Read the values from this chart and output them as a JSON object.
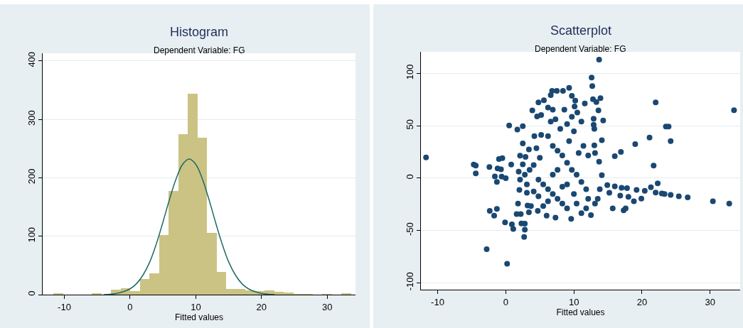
{
  "chart_data": [
    {
      "type": "histogram",
      "title": "Histogram",
      "subtitle": "Dependent Variable: FG",
      "xlabel": "Fitted values",
      "bins": [
        -11.64,
        -10.18,
        -8.72,
        -7.26,
        -5.8,
        -4.34,
        -2.88,
        -1.42,
        0.04,
        1.5,
        2.96,
        4.42,
        5.88,
        7.34,
        8.8,
        10.26,
        11.72,
        13.18,
        14.64,
        16.1,
        17.56,
        19.02,
        20.48,
        21.94,
        23.4,
        24.86,
        26.32,
        27.78,
        29.24,
        30.7,
        32.16,
        33.62
      ],
      "values": [
        2,
        0,
        0,
        0,
        2,
        0,
        9,
        11,
        6,
        27,
        36,
        102,
        177,
        274,
        344,
        268,
        106,
        39,
        10,
        10,
        7,
        6,
        7,
        5,
        4,
        1,
        1,
        0,
        1,
        0,
        2
      ],
      "color": "#cbc383",
      "series": [
        {
          "type": "line",
          "color": "#1f6a66",
          "x": [
            -4,
            -2,
            0,
            1,
            2,
            3,
            4,
            5,
            6,
            7,
            8,
            9,
            10,
            11,
            12,
            13,
            14,
            15,
            16,
            17,
            18,
            20,
            22
          ],
          "values": [
            0,
            2,
            10,
            19,
            34,
            56,
            87,
            124,
            163,
            198,
            223,
            232,
            223,
            198,
            163,
            124,
            87,
            56,
            34,
            19,
            10,
            2,
            0
          ]
        }
      ],
      "xlim": [
        -13.3,
        34.3
      ],
      "ylim": [
        0,
        413
      ],
      "xticks": [
        -10,
        0,
        10,
        20,
        30
      ],
      "yticks": [
        0,
        100,
        200,
        300,
        400
      ],
      "grid": "y"
    },
    {
      "type": "scatter",
      "title": "Scatterplot",
      "subtitle": "Dependent Variable: FG",
      "xlabel": "Fitted values",
      "color": "#1a4872",
      "marker": "circle",
      "x": [
        -11.7,
        -4.7,
        -4.4,
        -4.4,
        -2.4,
        -2.8,
        0.2,
        0.5,
        1.7,
        2.5,
        0.8,
        -1.0,
        -0.5,
        -1.2,
        -0.7,
        -1.6,
        -1.3,
        0,
        -0.6,
        -2.35,
        -1.3,
        -1.7,
        -0.1,
        0.9,
        1.1,
        1.6,
        2.2,
        1.8,
        2.8,
        2.8,
        2.7,
        2.3,
        3.4,
        3.2,
        3.7,
        2.0,
        3.1,
        2.5,
        2.1,
        2.9,
        3.4,
        2.5,
        1.9,
        3.9,
        4.6,
        5.2,
        4.8,
        5.6,
        6.2,
        6.8,
        7.5,
        6.6,
        8.4,
        9.3,
        9.7,
        10.2,
        10.5,
        10.1,
        12.6,
        12.7,
        13.7,
        12.8,
        13.3,
        13.9,
        11.6,
        13.6,
        14.3,
        12.9,
        12.9,
        13.0,
        14.1,
        13.0,
        13.1,
        13.7,
        14.1,
        16.0,
        16.9,
        19.0,
        21.1,
        22.0,
        21.7,
        23.5,
        23.9,
        24.2,
        33.5,
        14.9,
        16,
        17,
        17.8,
        19.2,
        20.4,
        21.3,
        22.3,
        22.0,
        22.9,
        23.3,
        24.2,
        25.4,
        26.7,
        30.4,
        32.8,
        15.2,
        16.8,
        18,
        18.8,
        19.9,
        15.7,
        17.3,
        17.6,
        4.8,
        5.5,
        6.2,
        6.9,
        7.6,
        8.3,
        9.0,
        9.6,
        7.3,
        6.0,
        5.5,
        4.7,
        11.1,
        12.5,
        13.1,
        12.1,
        11.8,
        11.1,
        10.4,
        9.7,
        9.0,
        8.3,
        7.6,
        6.9,
        6.2,
        5.2,
        4.2,
        4.5,
        5.0,
        4.1,
        3.5,
        2.8,
        2.1,
        3.1,
        4.1,
        4.8,
        10.0,
        10.7,
        11.4,
        12.1,
        9.3,
        10.0,
        11.1,
        9.0,
        8.0,
        7.3,
        6.6,
        6.9,
        8.6,
        9.7,
        8.3,
        6.9,
        7.6,
        9.0,
        10.4,
        6.2,
        11.8,
        13.5,
        13.8
      ],
      "values": [
        19.8,
        12.9,
        12,
        4.4,
        10.6,
        -67.9,
        -81.9,
        50.2,
        46.3,
        49.5,
        12.9,
        18.2,
        19.1,
        9.2,
        8.3,
        1.6,
        -3.7,
        -0.2,
        1.4,
        -31.3,
        -29.5,
        -35.9,
        -42.3,
        -44.2,
        -48.6,
        -34.3,
        -34.3,
        -24.4,
        -43.5,
        -49.3,
        -56.2,
        -43.3,
        -32.7,
        -26.2,
        -26.7,
        -11.3,
        -14,
        33.1,
        21.4,
        20.3,
        27.4,
        13.1,
        6.2,
        64.7,
        58.9,
        60.3,
        72.3,
        74.3,
        67.4,
        83.3,
        83.3,
        79.2,
        83.3,
        86.1,
        78.5,
        73.9,
        62.6,
        68.4,
        96,
        87.9,
        113.2,
        75.3,
        72.7,
        76.4,
        71.3,
        64.7,
        55,
        56.6,
        50.9,
        47,
        36.1,
        31.3,
        23.9,
        15.6,
        2.8,
        20.9,
        24.9,
        32.5,
        38.7,
        72.3,
        12,
        49.3,
        49.3,
        35.4,
        64.9,
        -6.7,
        -8,
        -9.2,
        -9.7,
        -11.3,
        -12.2,
        -8.7,
        -5.1,
        -13.8,
        -14.7,
        -15.2,
        -16.1,
        -17.5,
        -18.4,
        -22.1,
        -24.4,
        -14,
        -16.8,
        -18,
        -22.1,
        -19.6,
        -29,
        -30.8,
        -29,
        -1.4,
        -6,
        -10.6,
        -15.2,
        -19.8,
        -24.4,
        -29,
        -38.9,
        -37.7,
        -35.9,
        -26.7,
        -31.3,
        -33.6,
        -35.4,
        -24.4,
        -19.8,
        -10.6,
        -3.7,
        3.2,
        7.8,
        14.7,
        21.6,
        26.2,
        30.8,
        40,
        41.2,
        40,
        28.5,
        19.3,
        12.4,
        7.8,
        3.2,
        -1.4,
        -6,
        -12.9,
        -17.5,
        -15.2,
        23.9,
        30.8,
        21.6,
        35.4,
        44.7,
        53.9,
        51.6,
        47,
        56.2,
        53.9,
        65.4,
        65.4,
        58.5,
        -8.3,
        3.2,
        7.8,
        -6,
        -24.4,
        -22.1,
        -29,
        -19.8,
        -10.6
      ],
      "xlim": [
        -12.45,
        34.4
      ],
      "ylim": [
        -106.6,
        120.6
      ],
      "xticks": [
        -10,
        0,
        10,
        20,
        30
      ],
      "yticks": [
        -100,
        -50,
        0,
        50,
        100
      ],
      "grid": "y"
    }
  ]
}
